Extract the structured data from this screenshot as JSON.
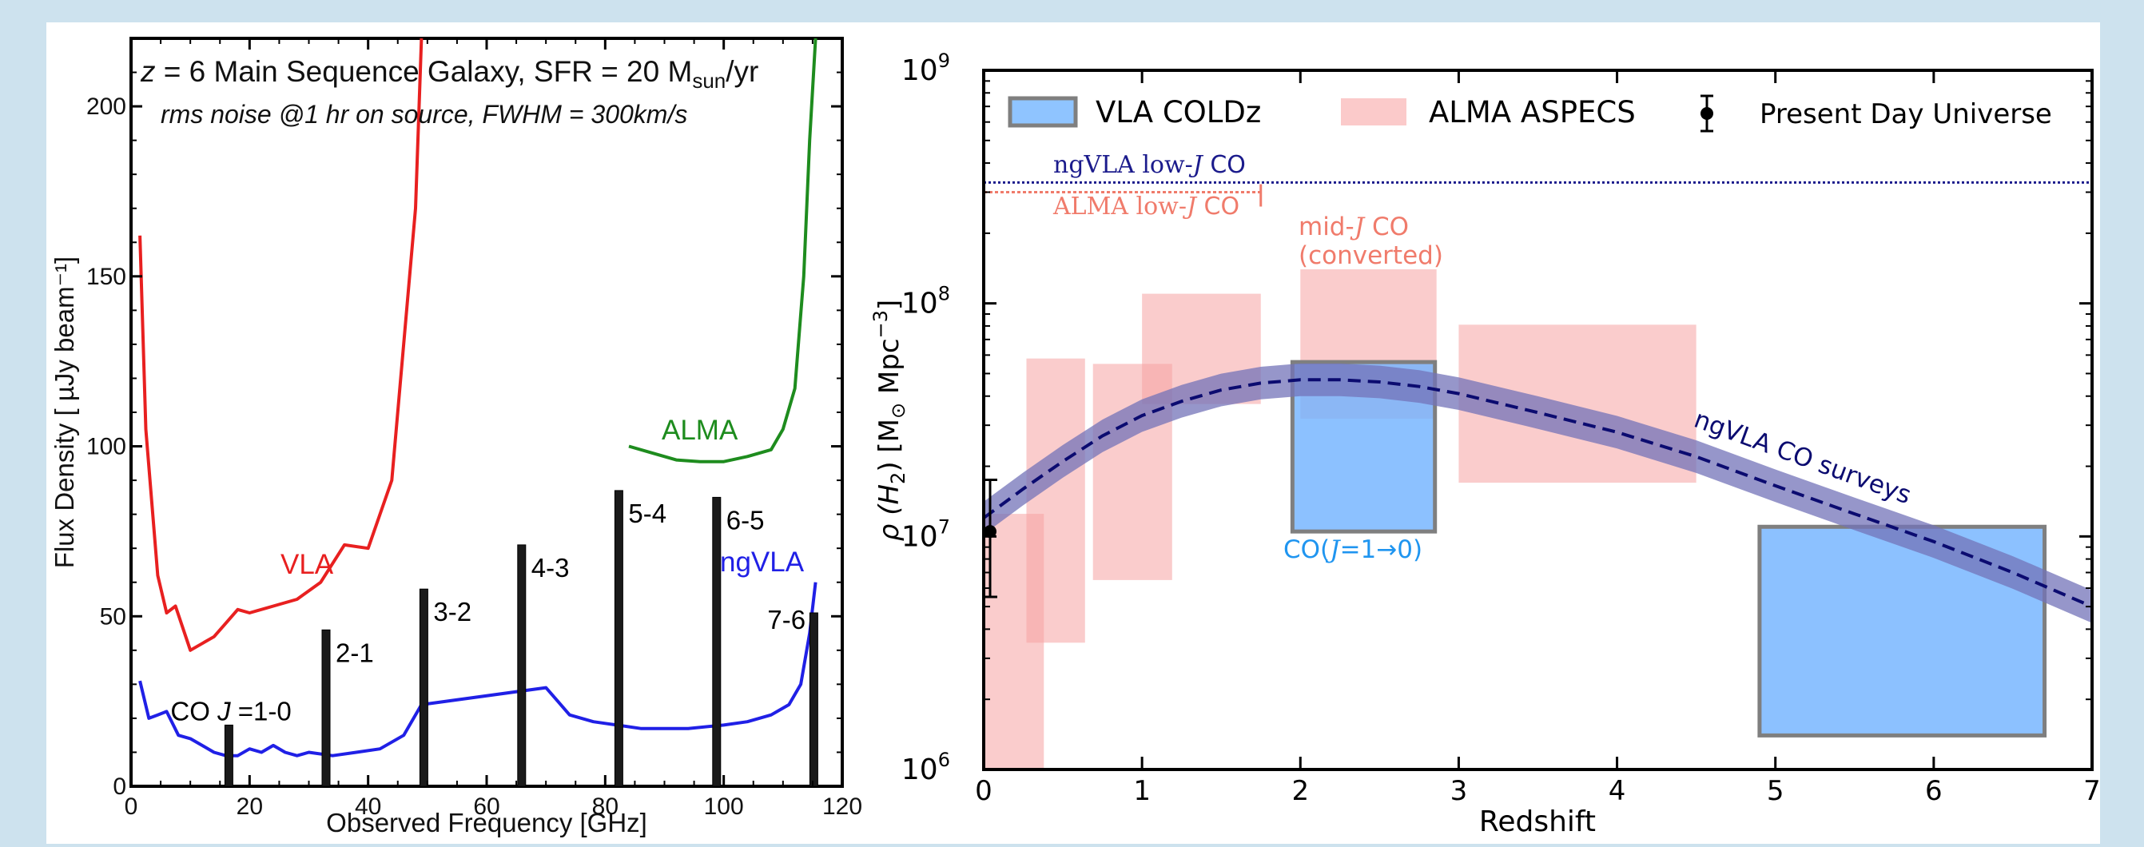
{
  "chart_data": [
    {
      "type": "line",
      "title": "z = 6  Main Sequence Galaxy, SFR =  20 Msun/yr",
      "title_parts": {
        "z": "z",
        "rest": " = 6  Main Sequence Galaxy, SFR =  20 M",
        "sub": "sun",
        "tail": "/yr"
      },
      "subtitle": "rms noise @1 hr on source, FWHM = 300km/s",
      "xlabel": "Observed Frequency [GHz]",
      "ylabel": "Flux Density [  µJy beam⁻¹]",
      "xlim": [
        0,
        120
      ],
      "ylim": [
        0,
        220
      ],
      "xticks": [
        "0",
        "20",
        "40",
        "60",
        "80",
        "100",
        "120"
      ],
      "yticks": [
        "0",
        "50",
        "100",
        "150",
        "200"
      ],
      "series": [
        {
          "name": "VLA",
          "color": "#e82020",
          "points": [
            [
              1.5,
              162
            ],
            [
              2.5,
              105
            ],
            [
              4.5,
              62
            ],
            [
              6,
              51
            ],
            [
              7.5,
              53
            ],
            [
              10,
              40
            ],
            [
              12,
              42
            ],
            [
              14,
              44
            ],
            [
              16,
              48
            ],
            [
              18,
              52
            ],
            [
              20,
              51
            ],
            [
              24,
              53
            ],
            [
              28,
              55
            ],
            [
              32,
              60
            ],
            [
              36,
              71
            ],
            [
              40,
              70
            ],
            [
              44,
              90
            ],
            [
              48,
              170
            ],
            [
              49,
              220
            ]
          ]
        },
        {
          "name": "ALMA",
          "color": "#1e8c1e",
          "points": [
            [
              84,
              100
            ],
            [
              88,
              98
            ],
            [
              92,
              96
            ],
            [
              96,
              95.5
            ],
            [
              100,
              95.5
            ],
            [
              104,
              97
            ],
            [
              108,
              99
            ],
            [
              110,
              105
            ],
            [
              112,
              117
            ],
            [
              113.5,
              150
            ],
            [
              114.5,
              190
            ],
            [
              115.5,
              220
            ]
          ]
        },
        {
          "name": "ngVLA",
          "color": "#2020e6",
          "points": [
            [
              1.5,
              31
            ],
            [
              3,
              20
            ],
            [
              4.5,
              21
            ],
            [
              6,
              22
            ],
            [
              8,
              15
            ],
            [
              10,
              14
            ],
            [
              12,
              12
            ],
            [
              14,
              10
            ],
            [
              16,
              9
            ],
            [
              18,
              9
            ],
            [
              20,
              11
            ],
            [
              22,
              10
            ],
            [
              24,
              12
            ],
            [
              26,
              10
            ],
            [
              28,
              9
            ],
            [
              30,
              10
            ],
            [
              34,
              9
            ],
            [
              38,
              10
            ],
            [
              42,
              11
            ],
            [
              46,
              15
            ],
            [
              49,
              24
            ],
            [
              70,
              29
            ],
            [
              72,
              25
            ],
            [
              74,
              21
            ],
            [
              78,
              19
            ],
            [
              82,
              18
            ],
            [
              86,
              17
            ],
            [
              94,
              17
            ],
            [
              100,
              18
            ],
            [
              104,
              19
            ],
            [
              108,
              21
            ],
            [
              111,
              24
            ],
            [
              113,
              30
            ],
            [
              114.5,
              45
            ],
            [
              115.5,
              60
            ]
          ]
        }
      ],
      "co_lines": [
        {
          "label": "CO J=1-0",
          "freq": 16.5,
          "height": 18
        },
        {
          "label": "2-1",
          "freq": 32.9,
          "height": 46
        },
        {
          "label": "3-2",
          "freq": 49.4,
          "height": 58
        },
        {
          "label": "4-3",
          "freq": 65.9,
          "height": 71
        },
        {
          "label": "5-4",
          "freq": 82.3,
          "height": 87
        },
        {
          "label": "6-5",
          "freq": 98.8,
          "height": 85
        },
        {
          "label": "7-6",
          "freq": 115.2,
          "height": 51
        }
      ],
      "co_label_parts": {
        "pre": "CO ",
        "j": "J",
        "post": " =1-0"
      }
    },
    {
      "type": "area",
      "xlabel": "Redshift",
      "ylabel": "ρ (H₂) [M⊙ Mpc⁻³]",
      "ylabel_parts": {
        "rho": "ρ (H",
        "sub2": "2",
        "bracket": ") [M",
        "sun": "⊙",
        "mpc": " Mpc",
        "exp": "−3",
        "close": "]"
      },
      "xlim": [
        0,
        7
      ],
      "ylim_log10": [
        6,
        9
      ],
      "y_scale": "log",
      "xticks": [
        "0",
        "1",
        "2",
        "3",
        "4",
        "5",
        "6",
        "7"
      ],
      "yticks": [
        {
          "base": "10",
          "exp": "6"
        },
        {
          "base": "10",
          "exp": "7"
        },
        {
          "base": "10",
          "exp": "8"
        },
        {
          "base": "10",
          "exp": "9"
        }
      ],
      "legend": [
        {
          "label": "VLA COLDz",
          "kind": "box",
          "color": "#8fc4ff"
        },
        {
          "label": "ALMA ASPECS",
          "kind": "box",
          "color": "#fbcaca"
        },
        {
          "label": "Present Day Universe",
          "kind": "errorbar",
          "color": "#000000"
        }
      ],
      "aspecs_boxes": [
        {
          "z": [
            0.0,
            0.38
          ],
          "rho": [
            1000000.0,
            12500000.0
          ]
        },
        {
          "z": [
            0.27,
            0.64
          ],
          "rho": [
            3500000.0,
            58000000.0
          ]
        },
        {
          "z": [
            0.69,
            1.19
          ],
          "rho": [
            6500000.0,
            55000000.0
          ]
        },
        {
          "z": [
            1.0,
            1.75
          ],
          "rho": [
            37000000.0,
            110000000.0
          ]
        },
        {
          "z": [
            2.0,
            2.86
          ],
          "rho": [
            32000000.0,
            140000000.0
          ]
        },
        {
          "z": [
            3.0,
            4.5
          ],
          "rho": [
            17000000.0,
            81000000.0
          ]
        }
      ],
      "coldz_boxes": [
        {
          "z": [
            1.95,
            2.85
          ],
          "rho": [
            10500000.0,
            56000000.0
          ]
        },
        {
          "z": [
            4.9,
            6.7
          ],
          "rho": [
            1400000.0,
            11000000.0
          ]
        }
      ],
      "present_day": {
        "z": 0.0,
        "rho": 10500000.0,
        "err": [
          5500000.0,
          17500000.0
        ]
      },
      "ngvla_model": {
        "label": "ngVLA CO surveys",
        "line_color": "#0b0b70",
        "band_color": "#7373b8",
        "band_dex": 0.07,
        "points": [
          [
            0,
            12000000.0
          ],
          [
            0.25,
            16000000.0
          ],
          [
            0.5,
            21000000.0
          ],
          [
            0.75,
            27000000.0
          ],
          [
            1.0,
            33000000.0
          ],
          [
            1.25,
            38000000.0
          ],
          [
            1.5,
            42500000.0
          ],
          [
            1.75,
            45500000.0
          ],
          [
            2.0,
            47000000.0
          ],
          [
            2.25,
            47000000.0
          ],
          [
            2.5,
            46000000.0
          ],
          [
            2.75,
            44000000.0
          ],
          [
            3.0,
            41000000.0
          ],
          [
            3.5,
            34000000.0
          ],
          [
            4.0,
            28000000.0
          ],
          [
            4.5,
            22000000.0
          ],
          [
            5.0,
            16500000.0
          ],
          [
            5.5,
            12500000.0
          ],
          [
            6.0,
            9500000.0
          ],
          [
            6.5,
            7000000.0
          ],
          [
            7.0,
            5000000.0
          ]
        ]
      },
      "sensitivity": [
        {
          "label_pre": "ngVLA  low-",
          "label_j": "J",
          "label_post": " CO",
          "rho": 330000000.0,
          "z": [
            0,
            7
          ],
          "color": "#1b1b8c"
        },
        {
          "label_pre": "ALMA  low-",
          "label_j": "J",
          "label_post": " CO",
          "rho": 300000000.0,
          "z": [
            0,
            1.75
          ],
          "color": "#f07b6b"
        }
      ],
      "annotations": [
        {
          "text_pre": "mid-",
          "text_j": "J",
          "text_post": " CO",
          "line2": "(converted)",
          "color": "#f07b6b"
        },
        {
          "text_pre": "CO(",
          "text_j": "J",
          "text_post": "=1→0)",
          "color": "#1f95f0"
        }
      ]
    }
  ]
}
